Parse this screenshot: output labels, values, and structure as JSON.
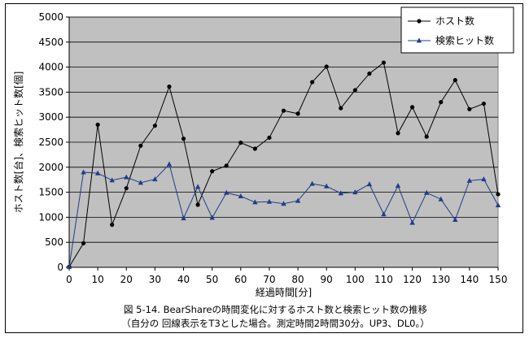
{
  "chart_data": {
    "type": "line",
    "x": [
      0,
      5,
      10,
      15,
      20,
      25,
      30,
      35,
      40,
      45,
      50,
      55,
      60,
      65,
      70,
      75,
      80,
      85,
      90,
      95,
      100,
      105,
      110,
      115,
      120,
      125,
      130,
      135,
      140,
      145,
      150
    ],
    "series": [
      {
        "name": "ホスト数",
        "color": "#000000",
        "marker": "circle",
        "values": [
          10,
          480,
          2850,
          850,
          1580,
          2430,
          2830,
          3610,
          2570,
          1250,
          1920,
          2030,
          2490,
          2370,
          2590,
          3130,
          3070,
          3700,
          4010,
          3180,
          3540,
          3870,
          4090,
          2680,
          3200,
          2610,
          3300,
          3740,
          3160,
          3270,
          1460
        ]
      },
      {
        "name": "検索ヒット数",
        "color": "#1f3d8a",
        "marker": "triangle",
        "values": [
          10,
          1900,
          1880,
          1740,
          1800,
          1690,
          1760,
          2060,
          980,
          1610,
          990,
          1490,
          1420,
          1300,
          1310,
          1270,
          1330,
          1670,
          1620,
          1480,
          1500,
          1660,
          1060,
          1630,
          890,
          1490,
          1360,
          950,
          1730,
          1760,
          1240
        ]
      }
    ],
    "xlim": [
      0,
      150
    ],
    "ylim": [
      0,
      5000
    ],
    "xticks": [
      "0",
      "10",
      "20",
      "30",
      "40",
      "50",
      "60",
      "70",
      "80",
      "90",
      "100",
      "110",
      "120",
      "130",
      "140",
      "150"
    ],
    "yticks": [
      "0",
      "500",
      "1000",
      "1500",
      "2000",
      "2500",
      "3000",
      "3500",
      "4000",
      "4500",
      "5000"
    ],
    "xlabel": "経過時間[分]",
    "ylabel": "ホスト数[台]、検索ヒット数[個]",
    "grid": true,
    "legend": "top-right",
    "plot_background": "#c0c0c0",
    "caption_line1": "図 5-14. BearShareの時間変化に対するホスト数と検索ヒット数の推移",
    "caption_line2": "（自分の 回線表示をT3とした場合。測定時間2時間30分。UP3、DL0。）"
  }
}
